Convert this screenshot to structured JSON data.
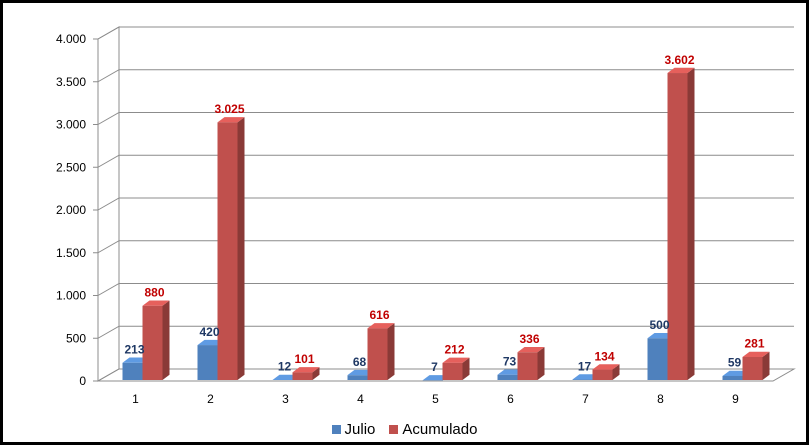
{
  "chart_data": {
    "type": "bar",
    "categories": [
      "1",
      "2",
      "3",
      "4",
      "5",
      "6",
      "7",
      "8",
      "9"
    ],
    "series": [
      {
        "name": "Julio",
        "values": [
          213,
          420,
          12,
          68,
          7,
          73,
          17,
          500,
          59
        ],
        "labels": [
          "213",
          "420",
          "12",
          "68",
          "7",
          "73",
          "17",
          "500",
          "59"
        ],
        "color": "#4f81bd",
        "label_color": "#1f3864"
      },
      {
        "name": "Acumulado",
        "values": [
          880,
          3025,
          101,
          616,
          212,
          336,
          134,
          3602,
          281
        ],
        "labels": [
          "880",
          "3.025",
          "101",
          "616",
          "212",
          "336",
          "134",
          "3.602",
          "281"
        ],
        "color": "#c0504d",
        "label_color": "#c00000"
      }
    ],
    "ylim": [
      0,
      4000
    ],
    "yticks": [
      0,
      500,
      1000,
      1500,
      2000,
      2500,
      3000,
      3500,
      4000
    ],
    "ytick_labels": [
      "0",
      "500",
      "1.000",
      "1.500",
      "2.000",
      "2.500",
      "3.000",
      "3.500",
      "4.000"
    ],
    "grid": true,
    "legend_position": "bottom",
    "style": "3d-clustered-column"
  }
}
